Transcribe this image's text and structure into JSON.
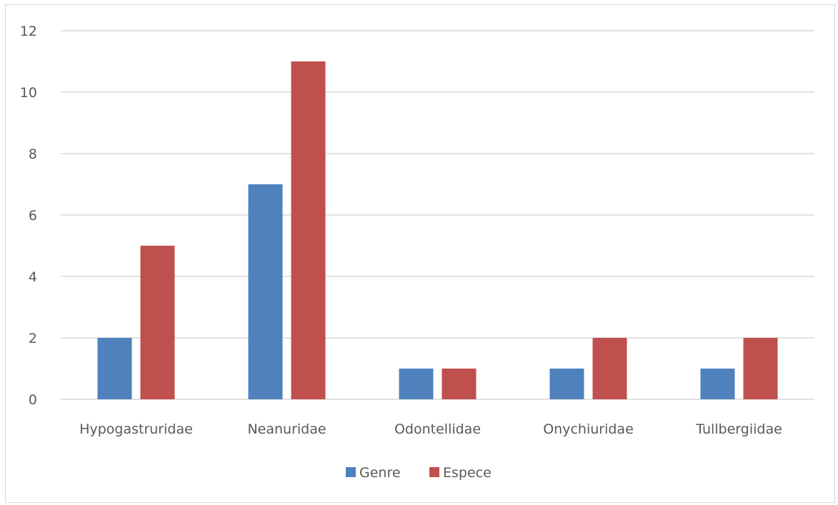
{
  "chart_data": {
    "type": "bar",
    "title": "",
    "xlabel": "",
    "ylabel": "",
    "categories": [
      "Hypogastruridae",
      "Neanuridae",
      "Odontellidae",
      "Onychiuridae",
      "Tullbergiidae"
    ],
    "series": [
      {
        "name": "Genre",
        "values": [
          2,
          7,
          1,
          1,
          1
        ],
        "color": "#4f81bd"
      },
      {
        "name": "Espece",
        "values": [
          5,
          11,
          1,
          2,
          2
        ],
        "color": "#c0504d"
      }
    ],
    "ylim": [
      0,
      12
    ],
    "yticks": [
      0,
      2,
      4,
      6,
      8,
      10,
      12
    ],
    "grid": true,
    "legend_position": "bottom",
    "gridline_color": "#d9d9d9",
    "text_color": "#595959"
  }
}
